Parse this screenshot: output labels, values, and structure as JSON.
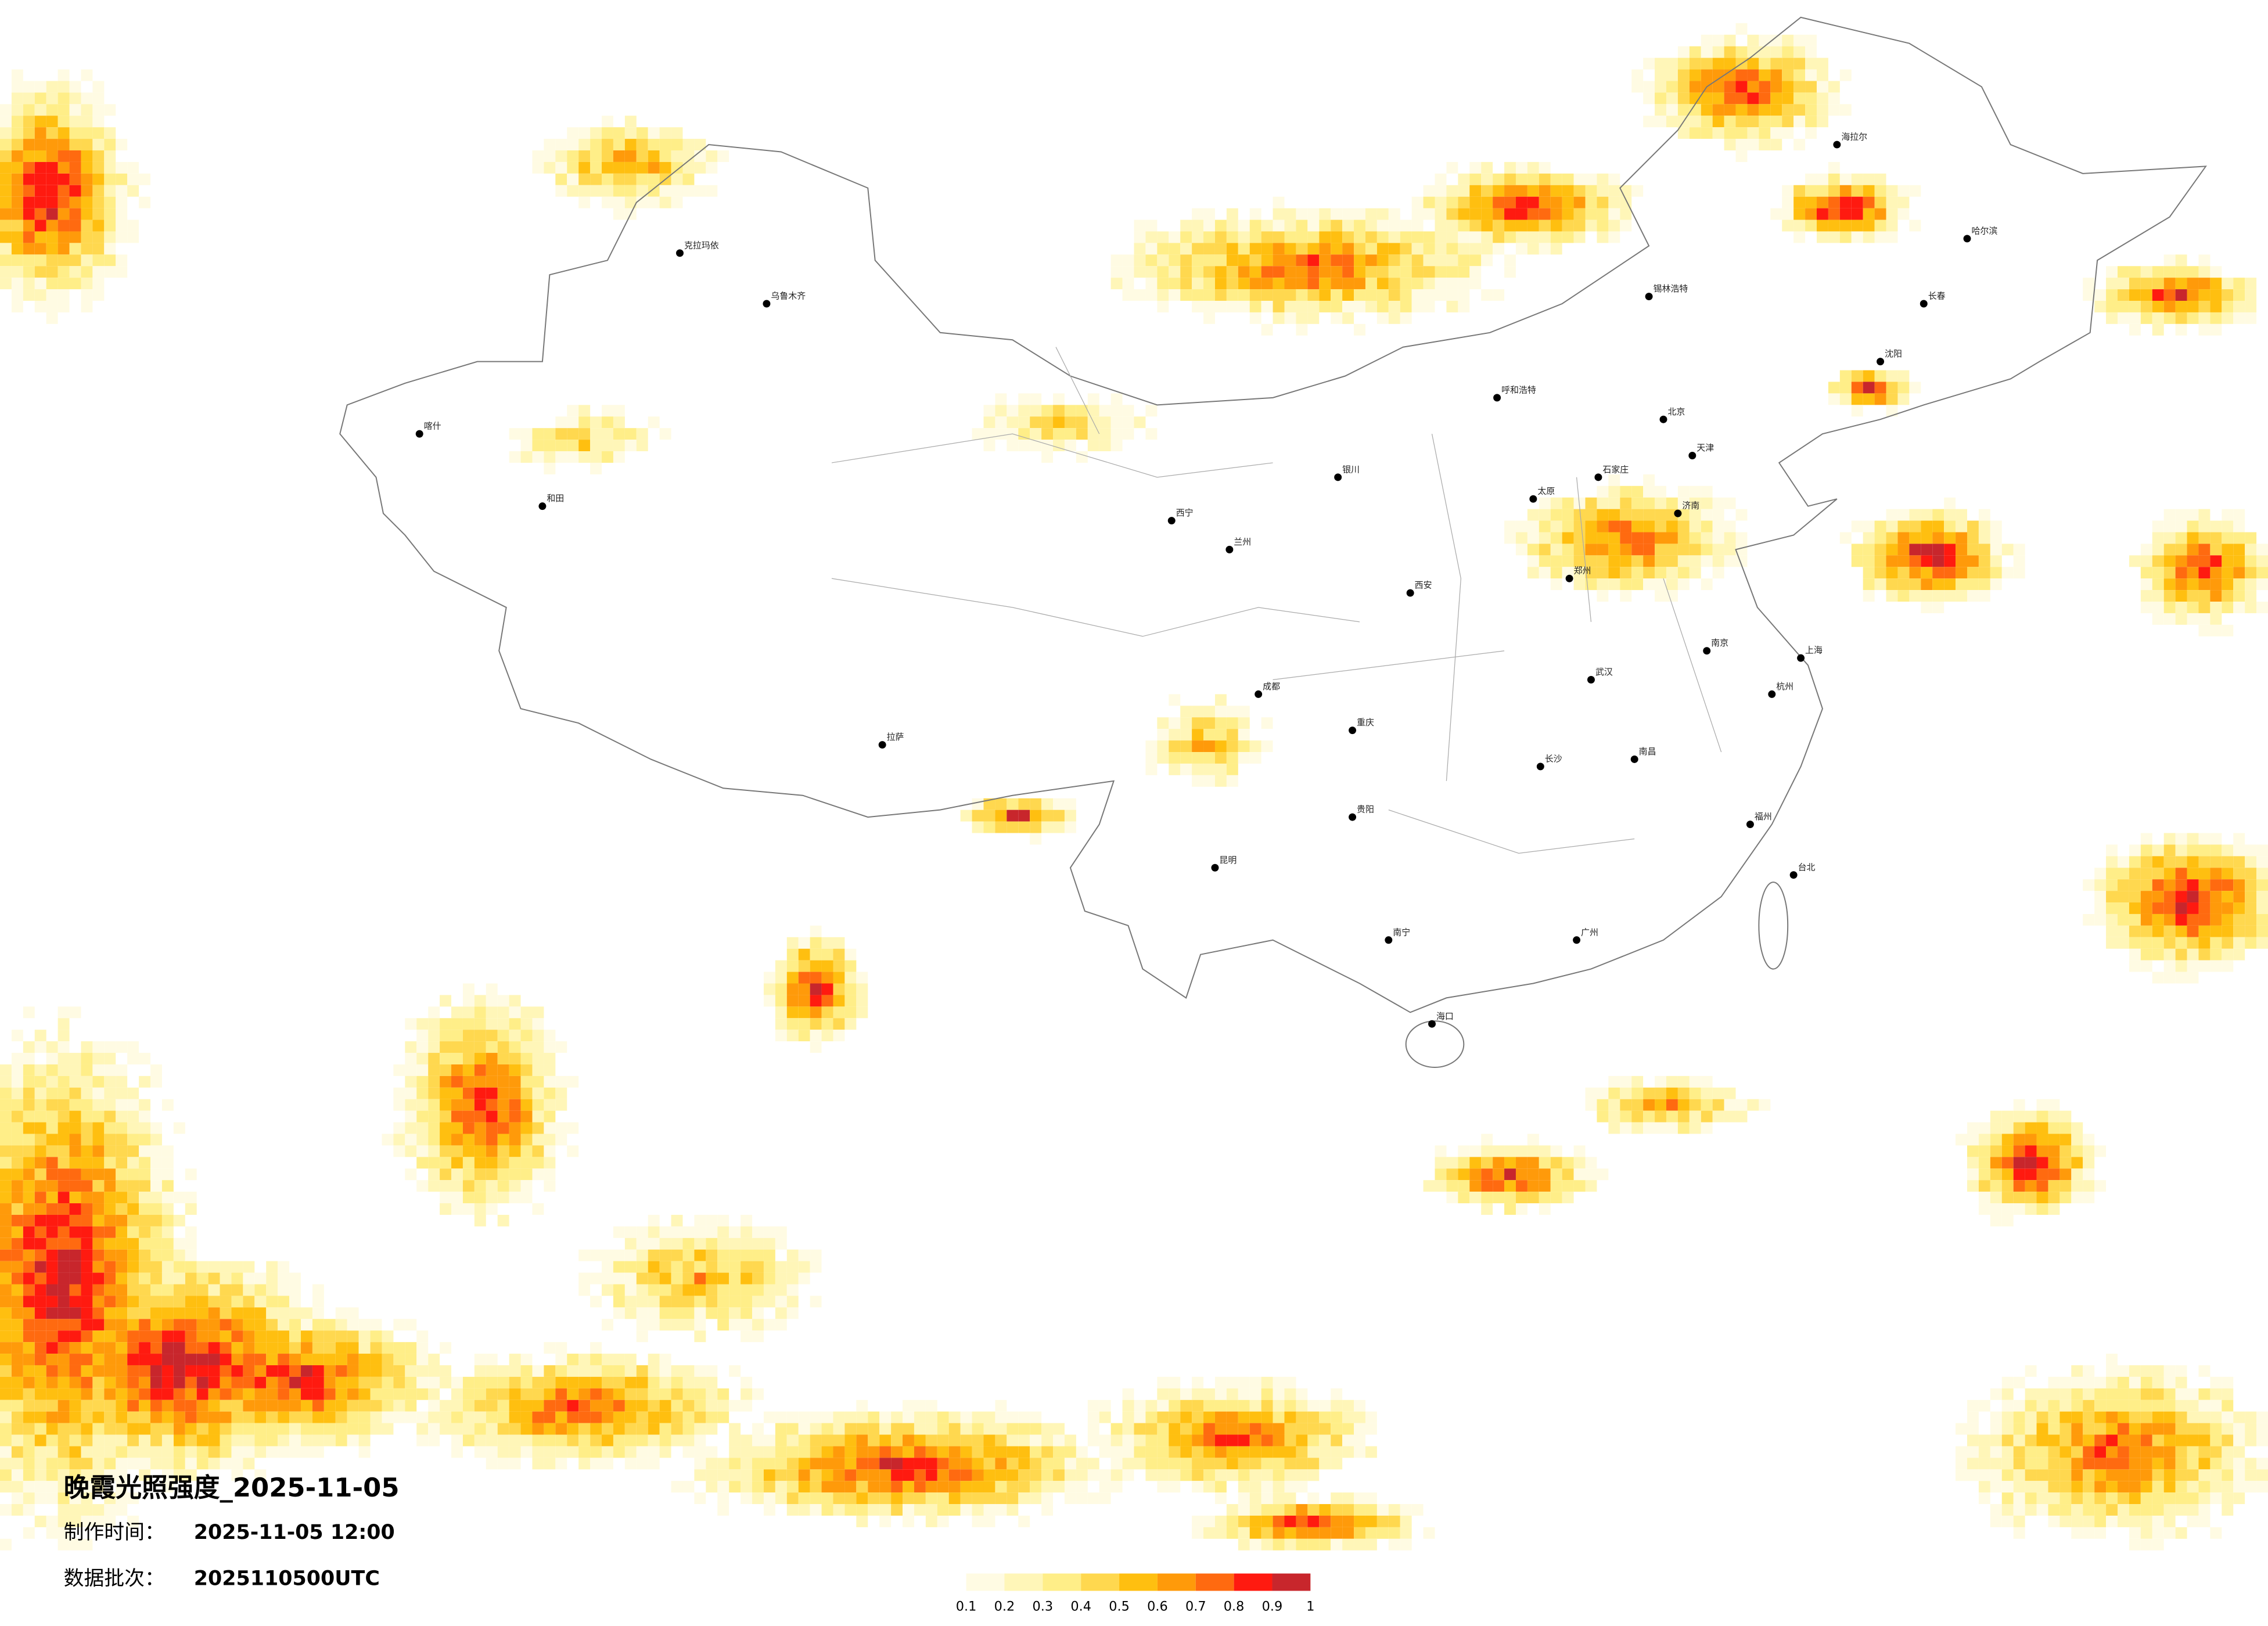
{
  "header": {
    "title": "晚霞光照强度_2025-11-05"
  },
  "info": [
    {
      "label": "制作时间：",
      "value": "2025-11-05 12:00"
    },
    {
      "label": "数据批次：",
      "value": "2025110500UTC"
    }
  ],
  "colorbar": {
    "ticks": [
      0.1,
      0.2,
      0.3,
      0.4,
      0.5,
      0.6,
      0.7,
      0.8,
      0.9,
      1
    ],
    "colors": [
      "#fffbe3",
      "#fff6b8",
      "#ffee88",
      "#ffd84f",
      "#ffbf10",
      "#ff9a0a",
      "#ff6a10",
      "#ff1a10",
      "#c8262c"
    ]
  },
  "cities": [
    "北京",
    "天津",
    "石家庄",
    "太原",
    "济南",
    "郑州",
    "西安",
    "武汉",
    "长沙",
    "南昌",
    "杭州",
    "南京",
    "上海",
    "福州",
    "广州",
    "南宁",
    "昆明",
    "贵阳",
    "成都",
    "重庆",
    "兰州",
    "西宁",
    "银川",
    "呼和浩特",
    "哈尔滨",
    "长春",
    "沈阳",
    "拉萨",
    "乌鲁木齐",
    "海口",
    "台北",
    "克拉玛依",
    "喀什",
    "和田",
    "锡林浩特",
    "海拉尔"
  ]
}
